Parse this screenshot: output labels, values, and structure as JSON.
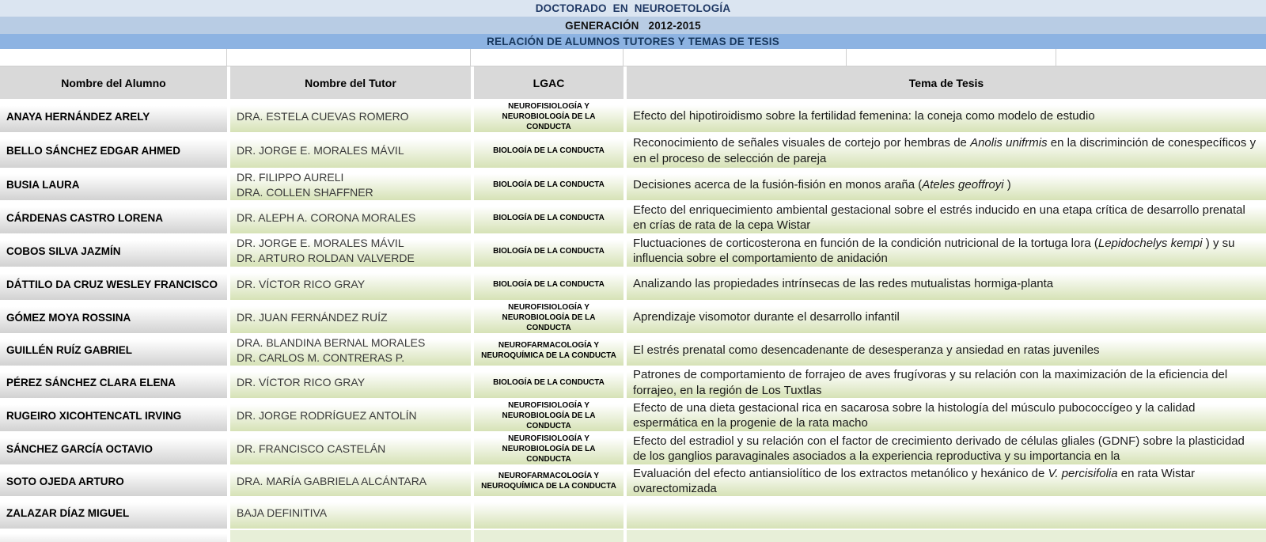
{
  "banner": {
    "title1": "DOCTORADO  EN  NEUROETOLOGÍA",
    "title2": "GENERACIÓN   2012-2015",
    "title3": "RELACIÓN DE ALUMNOS TUTORES Y TEMAS DE TESIS"
  },
  "colors": {
    "banner1_bg": "#dbe5f1",
    "banner2_bg": "#b8cce4",
    "banner3_bg": "#8db3e2",
    "banner_text": "#17375d",
    "header_bg": "#d9d9d9",
    "name_cell_gradient_bottom": "#d2d2d2",
    "green_cell_gradient_bottom": "#d6e2b6"
  },
  "table": {
    "headers": [
      "Nombre del Alumno",
      "Nombre del Tutor",
      "LGAC",
      "Tema de Tesis"
    ],
    "rows": [
      {
        "alumno": "ANAYA HERNÁNDEZ ARELY",
        "tutores": [
          "DRA. ESTELA CUEVAS ROMERO"
        ],
        "lgac": "NEUROFISIOLOGÍA Y NEUROBIOLOGÍA DE LA CONDUCTA",
        "tesis": [
          {
            "t": "Efecto del hipotiroidismo sobre la fertilidad femenina: la coneja como modelo de estudio",
            "i": false
          }
        ]
      },
      {
        "alumno": "BELLO SÁNCHEZ EDGAR AHMED",
        "tutores": [
          "DR. JORGE E. MORALES MÁVIL"
        ],
        "lgac": "BIOLOGÍA DE LA CONDUCTA",
        "tesis": [
          {
            "t": "Reconocimiento de señales visuales de cortejo por hembras de ",
            "i": false
          },
          {
            "t": "Anolis unifrmis",
            "i": true
          },
          {
            "t": "  en la discriminción de conespecíficos y en el proceso de selección de pareja",
            "i": false
          }
        ]
      },
      {
        "alumno": "BUSIA LAURA",
        "tutores": [
          "DR. FILIPPO AURELI",
          "DRA. COLLEN SHAFFNER"
        ],
        "lgac": "BIOLOGÍA DE LA CONDUCTA",
        "tesis": [
          {
            "t": "Decisiones acerca de la fusión-fisión en monos araña (",
            "i": false
          },
          {
            "t": "Ateles geoffroyi",
            "i": true
          },
          {
            "t": " )",
            "i": false
          }
        ]
      },
      {
        "alumno": "CÁRDENAS CASTRO LORENA",
        "tutores": [
          "DR. ALEPH A. CORONA MORALES"
        ],
        "lgac": "BIOLOGÍA DE LA CONDUCTA",
        "tesis": [
          {
            "t": "Efecto del enriquecimiento ambiental gestacional sobre el estrés inducido en una etapa crítica de desarrollo prenatal en crías de rata de la cepa Wistar",
            "i": false
          }
        ]
      },
      {
        "alumno": "COBOS SILVA JAZMÍN",
        "tutores": [
          "DR. JORGE E. MORALES MÁVIL",
          "DR. ARTURO ROLDAN VALVERDE"
        ],
        "lgac": "BIOLOGÍA DE LA CONDUCTA",
        "tesis": [
          {
            "t": "Fluctuaciones de corticosterona en función de la condición nutricional de la tortuga lora (",
            "i": false
          },
          {
            "t": "Lepidochelys kempi",
            "i": true
          },
          {
            "t": " ) y su influencia sobre el comportamiento de anidación",
            "i": false
          }
        ]
      },
      {
        "alumno": "DÁTTILO DA CRUZ WESLEY FRANCISCO",
        "tutores": [
          "DR. VÍCTOR RICO GRAY"
        ],
        "lgac": "BIOLOGÍA DE LA CONDUCTA",
        "tesis": [
          {
            "t": "Analizando las propiedades intrínsecas de las redes mutualistas hormiga-planta",
            "i": false
          }
        ]
      },
      {
        "alumno": "GÓMEZ MOYA ROSSINA",
        "tutores": [
          "DR. JUAN FERNÁNDEZ RUÍZ"
        ],
        "lgac": "NEUROFISIOLOGÍA Y NEUROBIOLOGÍA DE LA CONDUCTA",
        "tesis": [
          {
            "t": "Aprendizaje visomotor durante el desarrollo infantil",
            "i": false
          }
        ]
      },
      {
        "alumno": "GUILLÉN RUÍZ GABRIEL",
        "tutores": [
          "DRA. BLANDINA BERNAL MORALES",
          "DR. CARLOS M. CONTRERAS P."
        ],
        "lgac": "NEUROFARMACOLOGÍA Y NEUROQUÍMICA DE LA CONDUCTA",
        "tesis": [
          {
            "t": "El estrés prenatal como desencadenante de desesperanza y ansiedad en ratas juveniles",
            "i": false
          }
        ]
      },
      {
        "alumno": "PÉREZ SÁNCHEZ CLARA ELENA",
        "tutores": [
          "DR. VÍCTOR RICO GRAY"
        ],
        "lgac": "BIOLOGÍA DE LA CONDUCTA",
        "tesis": [
          {
            "t": "Patrones de comportamiento de forrajeo de aves frugívoras y su relación con la maximización de la eficiencia del forrajeo, en la región de Los Tuxtlas",
            "i": false
          }
        ]
      },
      {
        "alumno": "RUGEIRO XICOHTENCATL IRVING",
        "tutores": [
          "DR. JORGE RODRÍGUEZ ANTOLÍN"
        ],
        "lgac": "NEUROFISIOLOGÍA Y NEUROBIOLOGÍA DE LA CONDUCTA",
        "tesis": [
          {
            "t": "Efecto de una dieta gestacional rica en sacarosa sobre la histología del músculo pubococcígeo y la calidad espermática en la progenie de la rata macho",
            "i": false
          }
        ]
      },
      {
        "alumno": "SÁNCHEZ GARCÍA OCTAVIO",
        "tutores": [
          "DR. FRANCISCO CASTELÁN"
        ],
        "lgac": "NEUROFISIOLOGÍA Y NEUROBIOLOGÍA DE LA CONDUCTA",
        "tesis": [
          {
            "t": "Efecto del estradiol y su relación con el factor de crecimiento derivado de células gliales (GDNF) sobre la plasticidad de los ganglios paravaginales asociados a la experiencia reproductiva y su importancia en la",
            "i": false
          }
        ]
      },
      {
        "alumno": "SOTO OJEDA ARTURO",
        "tutores": [
          "DRA. MARÍA GABRIELA ALCÁNTARA"
        ],
        "lgac": "NEUROFARMACOLOGÍA Y NEUROQUÍMICA DE LA CONDUCTA",
        "tesis": [
          {
            "t": "Evaluación del efecto antiansiolítico de los extractos metanólico y hexánico de ",
            "i": false
          },
          {
            "t": "V. percisifolia",
            "i": true
          },
          {
            "t": "  en rata Wistar ovarectomizada",
            "i": false
          }
        ]
      },
      {
        "alumno": "ZALAZAR DÍAZ MIGUEL",
        "tutores": [
          "BAJA DEFINITIVA"
        ],
        "lgac": "",
        "tesis": []
      }
    ]
  }
}
